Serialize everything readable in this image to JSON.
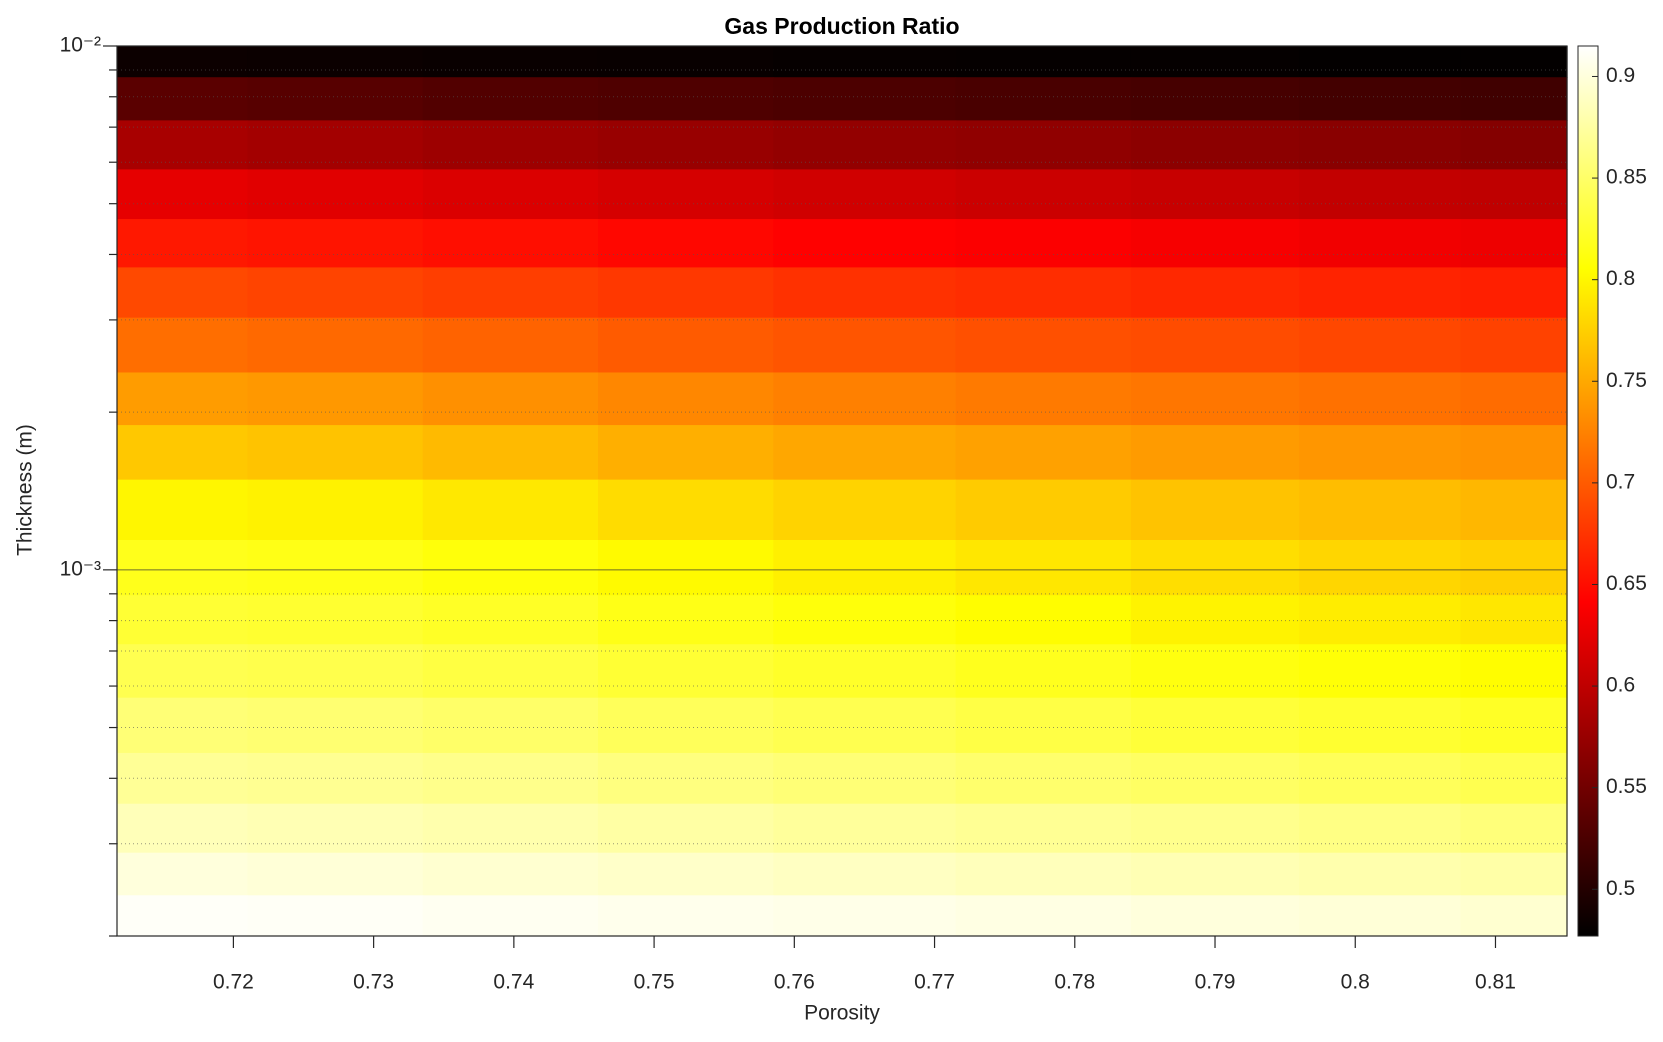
{
  "chart_data": {
    "type": "heatmap",
    "title": "Gas Production Ratio",
    "x_label": "Porosity",
    "y_label": "Thickness (m)",
    "x": [
      0.715,
      0.727,
      0.74,
      0.752,
      0.765,
      0.778,
      0.79,
      0.802,
      0.813
    ],
    "y": [
      0.0095,
      0.008,
      0.0065,
      0.0052,
      0.0042,
      0.0034,
      0.0027,
      0.0021,
      0.0017,
      0.0013,
      0.001,
      0.0008,
      0.00065,
      0.0005,
      0.0004,
      0.00032,
      0.00026,
      0.00022
    ],
    "z": [
      [
        0.485,
        0.484,
        0.483,
        0.482,
        0.481,
        0.48,
        0.48,
        0.479,
        0.479
      ],
      [
        0.535,
        0.533,
        0.53,
        0.528,
        0.526,
        0.524,
        0.522,
        0.52,
        0.518
      ],
      [
        0.585,
        0.582,
        0.578,
        0.575,
        0.572,
        0.57,
        0.567,
        0.565,
        0.562
      ],
      [
        0.625,
        0.622,
        0.618,
        0.614,
        0.611,
        0.608,
        0.605,
        0.602,
        0.6
      ],
      [
        0.657,
        0.654,
        0.65,
        0.646,
        0.642,
        0.639,
        0.636,
        0.633,
        0.63
      ],
      [
        0.688,
        0.685,
        0.681,
        0.677,
        0.673,
        0.67,
        0.667,
        0.664,
        0.661
      ],
      [
        0.712,
        0.709,
        0.705,
        0.7,
        0.696,
        0.693,
        0.69,
        0.687,
        0.684
      ],
      [
        0.742,
        0.739,
        0.734,
        0.728,
        0.724,
        0.72,
        0.717,
        0.714,
        0.711
      ],
      [
        0.77,
        0.767,
        0.761,
        0.754,
        0.749,
        0.745,
        0.741,
        0.738,
        0.735
      ],
      [
        0.8,
        0.797,
        0.791,
        0.783,
        0.777,
        0.772,
        0.767,
        0.763,
        0.759
      ],
      [
        0.817,
        0.815,
        0.81,
        0.802,
        0.796,
        0.79,
        0.784,
        0.779,
        0.775
      ],
      [
        0.828,
        0.826,
        0.822,
        0.815,
        0.81,
        0.804,
        0.798,
        0.794,
        0.79
      ],
      [
        0.84,
        0.838,
        0.834,
        0.828,
        0.823,
        0.818,
        0.812,
        0.808,
        0.804
      ],
      [
        0.856,
        0.854,
        0.85,
        0.844,
        0.84,
        0.835,
        0.83,
        0.826,
        0.822
      ],
      [
        0.87,
        0.868,
        0.865,
        0.86,
        0.856,
        0.852,
        0.848,
        0.844,
        0.84
      ],
      [
        0.885,
        0.883,
        0.88,
        0.876,
        0.872,
        0.869,
        0.866,
        0.862,
        0.858
      ],
      [
        0.9,
        0.898,
        0.895,
        0.892,
        0.889,
        0.886,
        0.883,
        0.88,
        0.877
      ],
      [
        0.912,
        0.911,
        0.909,
        0.907,
        0.905,
        0.903,
        0.9,
        0.898,
        0.895
      ]
    ],
    "xlim": [
      0.7117,
      0.8151
    ],
    "xticks": [
      0.72,
      0.73,
      0.74,
      0.75,
      0.76,
      0.77,
      0.78,
      0.79,
      {
        "value": 0.8,
        "label": "0.8"
      },
      0.81
    ],
    "ylim": [
      0.0002,
      0.01
    ],
    "yscale": "log",
    "yticks": [
      {
        "value": 0.001,
        "label": "10⁻³"
      },
      {
        "value": 0.01,
        "label": "10⁻²"
      }
    ],
    "yminorticks": [
      0.0002,
      0.0003,
      0.0004,
      0.0005,
      0.0006,
      0.0007,
      0.0008,
      0.0009,
      0.002,
      0.003,
      0.004,
      0.005,
      0.006,
      0.007,
      0.008,
      0.009
    ],
    "grid": true,
    "colormap": "hot",
    "clim": [
      0.477,
      0.915
    ],
    "colorbar_ticks": [
      {
        "value": 0.5,
        "label": "0.5"
      },
      0.55,
      {
        "value": 0.6,
        "label": "0.6"
      },
      0.65,
      {
        "value": 0.7,
        "label": "0.7"
      },
      0.75,
      {
        "value": 0.8,
        "label": "0.8"
      },
      0.85,
      {
        "value": 0.9,
        "label": "0.9"
      }
    ]
  }
}
